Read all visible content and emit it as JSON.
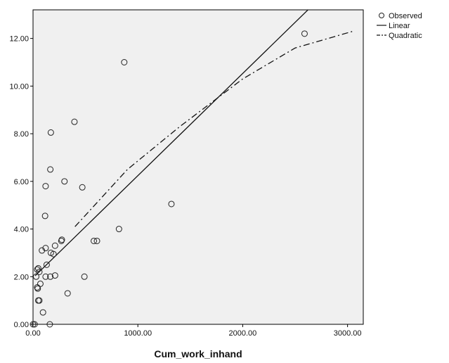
{
  "chart_data": {
    "type": "scatter",
    "xlabel": "Cum_work_inhand",
    "ylabel": "",
    "xlim": [
      0,
      3150
    ],
    "ylim": [
      0,
      13.2
    ],
    "x_ticks": [
      0,
      1000,
      2000,
      3000
    ],
    "x_tick_labels": [
      "0.00",
      "1000.00",
      "2000.00",
      "3000.00"
    ],
    "y_ticks": [
      0,
      2,
      4,
      6,
      8,
      10,
      12
    ],
    "y_tick_labels": [
      "0.00",
      "2.00",
      "4.00",
      "6.00",
      "8.00",
      "10.00",
      "12.00"
    ],
    "grid": false,
    "background_color": "#f0f0f0",
    "legend_position": "top-right",
    "legend": [
      {
        "label": "Observed",
        "symbol": "circle"
      },
      {
        "label": "Linear",
        "symbol": "solid-line"
      },
      {
        "label": "Quadratic",
        "symbol": "dash-dot-line"
      }
    ],
    "observed": [
      {
        "x": 0,
        "y": 0.0
      },
      {
        "x": 15,
        "y": 0.0
      },
      {
        "x": 160,
        "y": 0.0
      },
      {
        "x": 50,
        "y": 1.0
      },
      {
        "x": 60,
        "y": 1.0
      },
      {
        "x": 95,
        "y": 0.5
      },
      {
        "x": 40,
        "y": 1.55
      },
      {
        "x": 45,
        "y": 1.5
      },
      {
        "x": 70,
        "y": 1.7
      },
      {
        "x": 30,
        "y": 2.0
      },
      {
        "x": 120,
        "y": 2.0
      },
      {
        "x": 165,
        "y": 2.0
      },
      {
        "x": 210,
        "y": 2.05
      },
      {
        "x": 490,
        "y": 2.0
      },
      {
        "x": 40,
        "y": 2.3
      },
      {
        "x": 50,
        "y": 2.35
      },
      {
        "x": 60,
        "y": 2.2
      },
      {
        "x": 130,
        "y": 2.5
      },
      {
        "x": 85,
        "y": 3.1
      },
      {
        "x": 120,
        "y": 3.2
      },
      {
        "x": 170,
        "y": 3.0
      },
      {
        "x": 195,
        "y": 2.95
      },
      {
        "x": 210,
        "y": 3.3
      },
      {
        "x": 270,
        "y": 3.5
      },
      {
        "x": 275,
        "y": 3.55
      },
      {
        "x": 330,
        "y": 1.3
      },
      {
        "x": 580,
        "y": 3.5
      },
      {
        "x": 610,
        "y": 3.5
      },
      {
        "x": 820,
        "y": 4.0
      },
      {
        "x": 115,
        "y": 4.55
      },
      {
        "x": 120,
        "y": 5.8
      },
      {
        "x": 300,
        "y": 6.0
      },
      {
        "x": 470,
        "y": 5.75
      },
      {
        "x": 165,
        "y": 6.5
      },
      {
        "x": 170,
        "y": 8.05
      },
      {
        "x": 395,
        "y": 8.5
      },
      {
        "x": 870,
        "y": 11.0
      },
      {
        "x": 1320,
        "y": 5.05
      },
      {
        "x": 2590,
        "y": 12.2
      }
    ],
    "linear_fit": {
      "intercept": 1.95,
      "slope": 0.00429,
      "x_range": [
        20,
        2690
      ]
    },
    "quadratic_fit": {
      "x": [
        400,
        900,
        1400,
        2000,
        2500,
        3050
      ],
      "y": [
        4.1,
        6.5,
        8.3,
        10.3,
        11.6,
        12.3
      ]
    }
  }
}
